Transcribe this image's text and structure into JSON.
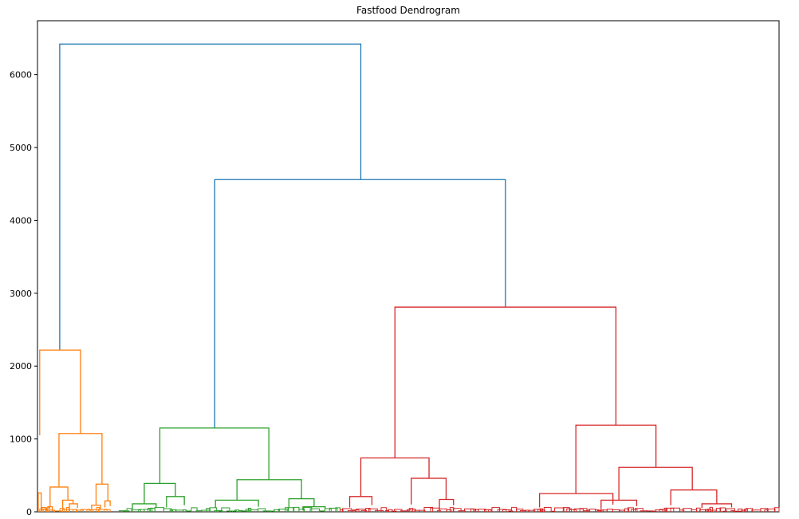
{
  "chart_data": {
    "type": "dendrogram",
    "title": "Fastfood Dendrogram",
    "xlabel": "",
    "ylabel": "",
    "ylim": [
      0,
      6740
    ],
    "yticks": [
      0,
      1000,
      2000,
      3000,
      4000,
      5000,
      6000
    ],
    "grid": false,
    "legend": "none",
    "colors": {
      "root": "#1f77b4",
      "cluster_1": "#ff7f0e",
      "cluster_2": "#2ca02c",
      "cluster_3": "#d62728"
    },
    "clusters": [
      {
        "id": "cluster_1",
        "color": "#ff7f0e",
        "x_range": [
          0.3,
          9.8
        ],
        "top_height": 2220
      },
      {
        "id": "cluster_2",
        "color": "#2ca02c",
        "x_range": [
          11.0,
          40.8
        ],
        "top_height": 1150
      },
      {
        "id": "cluster_3",
        "color": "#d62728",
        "x_range": [
          40.8,
          100.0
        ],
        "top_height": 2810
      }
    ],
    "links": [
      {
        "color": "#1f77b4",
        "x_left": 3.0,
        "x_right": 43.6,
        "height": 6420,
        "h_left": 2220,
        "h_right": 4560
      },
      {
        "color": "#1f77b4",
        "x_left": 23.9,
        "x_right": 63.1,
        "height": 4560,
        "h_left": 1150,
        "h_right": 2810
      },
      {
        "color": "#ff7f0e",
        "x_left": 0.3,
        "x_right": 5.8,
        "height": 2220,
        "h_left": 1050,
        "h_right": 1075
      },
      {
        "color": "#ff7f0e",
        "x_left": 2.9,
        "x_right": 8.7,
        "height": 1075,
        "h_left": 340,
        "h_right": 380
      },
      {
        "color": "#ff7f0e",
        "x_left": 1.7,
        "x_right": 4.1,
        "height": 340,
        "h_left": 70,
        "h_right": 160
      },
      {
        "color": "#ff7f0e",
        "x_left": 3.4,
        "x_right": 4.8,
        "height": 160,
        "h_left": 40,
        "h_right": 110
      },
      {
        "color": "#ff7f0e",
        "x_left": 4.3,
        "x_right": 5.4,
        "height": 110,
        "h_left": 30,
        "h_right": 50
      },
      {
        "color": "#ff7f0e",
        "x_left": 7.9,
        "x_right": 9.5,
        "height": 380,
        "h_left": 90,
        "h_right": 150
      },
      {
        "color": "#ff7f0e",
        "x_left": 7.3,
        "x_right": 8.5,
        "height": 90,
        "h_left": 20,
        "h_right": 40
      },
      {
        "color": "#ff7f0e",
        "x_left": 9.1,
        "x_right": 9.8,
        "height": 150,
        "h_left": 60,
        "h_right": 80
      },
      {
        "color": "#ff7f0e",
        "x_left": 0.1,
        "x_right": 0.5,
        "height": 260,
        "h_left": 0,
        "h_right": 0
      },
      {
        "color": "#ff7f0e",
        "x_left": 0.6,
        "x_right": 1.1,
        "height": 60,
        "h_left": 0,
        "h_right": 10
      },
      {
        "color": "#ff7f0e",
        "x_left": 1.4,
        "x_right": 2.0,
        "height": 70,
        "h_left": 0,
        "h_right": 10
      },
      {
        "color": "#2ca02c",
        "x_left": 16.5,
        "x_right": 31.2,
        "height": 1150,
        "h_left": 390,
        "h_right": 440
      },
      {
        "color": "#2ca02c",
        "x_left": 14.4,
        "x_right": 18.6,
        "height": 390,
        "h_left": 110,
        "h_right": 210
      },
      {
        "color": "#2ca02c",
        "x_left": 12.8,
        "x_right": 16.0,
        "height": 110,
        "h_left": 40,
        "h_right": 60
      },
      {
        "color": "#2ca02c",
        "x_left": 17.4,
        "x_right": 19.8,
        "height": 210,
        "h_left": 60,
        "h_right": 90
      },
      {
        "color": "#2ca02c",
        "x_left": 26.9,
        "x_right": 35.6,
        "height": 440,
        "h_left": 160,
        "h_right": 180
      },
      {
        "color": "#2ca02c",
        "x_left": 24.0,
        "x_right": 29.8,
        "height": 160,
        "h_left": 50,
        "h_right": 70
      },
      {
        "color": "#2ca02c",
        "x_left": 33.9,
        "x_right": 37.3,
        "height": 180,
        "h_left": 60,
        "h_right": 70
      },
      {
        "color": "#2ca02c",
        "x_left": 35.8,
        "x_right": 38.8,
        "height": 70,
        "h_left": 20,
        "h_right": 40
      },
      {
        "color": "#d62728",
        "x_left": 48.2,
        "x_right": 78.0,
        "height": 2810,
        "h_left": 740,
        "h_right": 1190
      },
      {
        "color": "#d62728",
        "x_left": 43.6,
        "x_right": 52.8,
        "height": 740,
        "h_left": 210,
        "h_right": 460
      },
      {
        "color": "#d62728",
        "x_left": 42.1,
        "x_right": 45.1,
        "height": 210,
        "h_left": 60,
        "h_right": 90
      },
      {
        "color": "#d62728",
        "x_left": 50.4,
        "x_right": 55.1,
        "height": 460,
        "h_left": 100,
        "h_right": 170
      },
      {
        "color": "#d62728",
        "x_left": 54.2,
        "x_right": 56.1,
        "height": 170,
        "h_left": 40,
        "h_right": 90
      },
      {
        "color": "#d62728",
        "x_left": 72.6,
        "x_right": 83.4,
        "height": 1190,
        "h_left": 250,
        "h_right": 610
      },
      {
        "color": "#d62728",
        "x_left": 67.7,
        "x_right": 77.6,
        "height": 250,
        "h_left": 60,
        "h_right": 100
      },
      {
        "color": "#d62728",
        "x_left": 78.4,
        "x_right": 88.3,
        "height": 610,
        "h_left": 160,
        "h_right": 300
      },
      {
        "color": "#d62728",
        "x_left": 76.0,
        "x_right": 80.8,
        "height": 160,
        "h_left": 40,
        "h_right": 80
      },
      {
        "color": "#d62728",
        "x_left": 85.4,
        "x_right": 91.6,
        "height": 300,
        "h_left": 90,
        "h_right": 110
      },
      {
        "color": "#d62728",
        "x_left": 89.6,
        "x_right": 93.6,
        "height": 110,
        "h_left": 50,
        "h_right": 60
      }
    ]
  }
}
